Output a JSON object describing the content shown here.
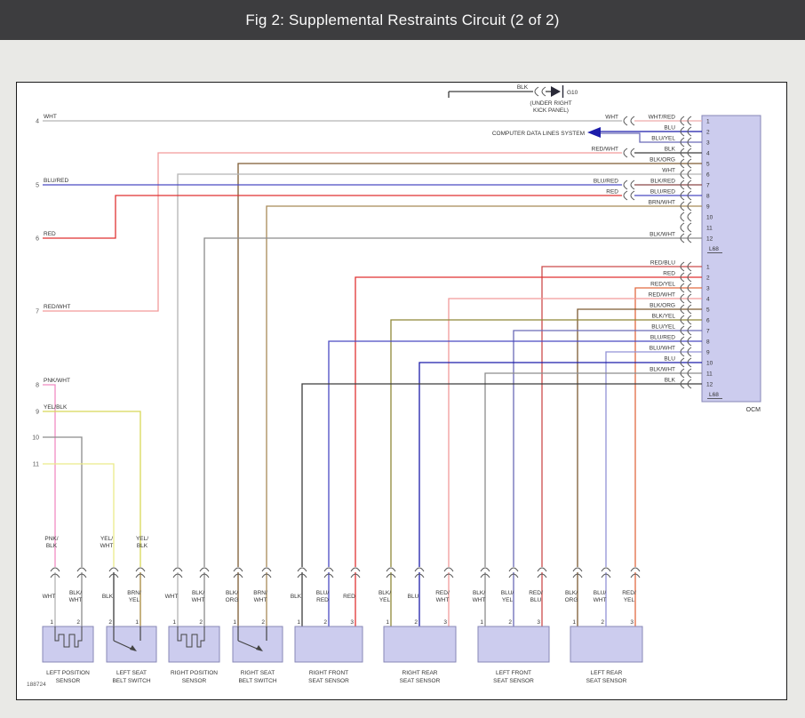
{
  "title": "Fig 2: Supplemental Restraints Circuit (2 of 2)",
  "figure_number": "188724",
  "ground": {
    "wire_label": "BLK",
    "name": "G10",
    "location_line1": "(UNDER RIGHT",
    "location_line2": "KICK PANEL)"
  },
  "data_lines": {
    "label": "COMPUTER DATA LINES SYSTEM"
  },
  "ocm": {
    "name": "OCM",
    "connectors": [
      {
        "label": "L68",
        "pins": [
          {
            "n": "1",
            "wire": "WHT/RED",
            "harness": "WHT"
          },
          {
            "n": "2",
            "wire": "BLU"
          },
          {
            "n": "3",
            "wire": "BLU/YEL"
          },
          {
            "n": "4",
            "wire": "BLK",
            "harness": "RED/WHT"
          },
          {
            "n": "5",
            "wire": "BLK/ORG"
          },
          {
            "n": "6",
            "wire": "WHT"
          },
          {
            "n": "7",
            "wire": "BLK/RED",
            "harness": "BLU/RED"
          },
          {
            "n": "8",
            "wire": "BLU/RED",
            "harness": "RED"
          },
          {
            "n": "9",
            "wire": "BRN/WHT"
          },
          {
            "n": "10",
            "wire": ""
          },
          {
            "n": "11",
            "wire": ""
          },
          {
            "n": "12",
            "wire": "BLK/WHT"
          }
        ]
      },
      {
        "label": "L68",
        "pins": [
          {
            "n": "1",
            "wire": "RED/BLU"
          },
          {
            "n": "2",
            "wire": "RED"
          },
          {
            "n": "3",
            "wire": "RED/YEL"
          },
          {
            "n": "4",
            "wire": "RED/WHT"
          },
          {
            "n": "5",
            "wire": "BLK/ORG"
          },
          {
            "n": "6",
            "wire": "BLK/YEL"
          },
          {
            "n": "7",
            "wire": "BLU/YEL"
          },
          {
            "n": "8",
            "wire": "BLU/RED"
          },
          {
            "n": "9",
            "wire": "BLU/WHT"
          },
          {
            "n": "10",
            "wire": "BLU"
          },
          {
            "n": "11",
            "wire": "BLK/WHT"
          },
          {
            "n": "12",
            "wire": "BLK"
          }
        ]
      }
    ]
  },
  "left_rows": [
    {
      "n": "4",
      "wire": "WHT"
    },
    {
      "n": "5",
      "wire": "BLU/RED"
    },
    {
      "n": "6",
      "wire": "RED"
    },
    {
      "n": "7",
      "wire": "RED/WHT"
    },
    {
      "n": "8",
      "wire": "PNK/WHT"
    },
    {
      "n": "9",
      "wire": "YEL/BLK"
    },
    {
      "n": "10",
      "wire": ""
    },
    {
      "n": "11",
      "wire": ""
    }
  ],
  "splices": [
    {
      "label": "PNK/BLK"
    },
    {
      "label": "YEL/WHT"
    },
    {
      "label": "YEL/BLK"
    }
  ],
  "sensors": [
    {
      "name": "LEFT POSITION SENSOR",
      "name_lines": [
        "LEFT POSITION",
        "SENSOR"
      ],
      "symbol": "position",
      "pins": [
        {
          "n": "1",
          "wire": "WHT"
        },
        {
          "n": "2",
          "wire": "BLK/WHT"
        }
      ]
    },
    {
      "name": "LEFT SEAT BELT SWITCH",
      "name_lines": [
        "LEFT SEAT",
        "BELT SWITCH"
      ],
      "symbol": "switch",
      "pins": [
        {
          "n": "2",
          "wire": "BLK"
        },
        {
          "n": "1",
          "wire": "BRN/YEL"
        }
      ]
    },
    {
      "name": "RIGHT POSITION SENSOR",
      "name_lines": [
        "RIGHT POSITION",
        "SENSOR"
      ],
      "symbol": "position",
      "pins": [
        {
          "n": "1",
          "wire": "WHT"
        },
        {
          "n": "2",
          "wire": "BLK/WHT"
        }
      ]
    },
    {
      "name": "RIGHT SEAT BELT SWITCH",
      "name_lines": [
        "RIGHT SEAT",
        "BELT SWITCH"
      ],
      "symbol": "switch",
      "pins": [
        {
          "n": "1",
          "wire": "BLK/ORG"
        },
        {
          "n": "2",
          "wire": "BRN/WHT"
        }
      ]
    },
    {
      "name": "RIGHT FRONT SEAT SENSOR",
      "name_lines": [
        "RIGHT FRONT",
        "SEAT SENSOR"
      ],
      "symbol": "none",
      "pins": [
        {
          "n": "1",
          "wire": "BLK"
        },
        {
          "n": "2",
          "wire": "BLU/RED"
        },
        {
          "n": "3",
          "wire": "RED"
        }
      ]
    },
    {
      "name": "RIGHT REAR SEAT SENSOR",
      "name_lines": [
        "RIGHT REAR",
        "SEAT SENSOR"
      ],
      "symbol": "none",
      "pins": [
        {
          "n": "1",
          "wire": "BLK/YEL"
        },
        {
          "n": "2",
          "wire": "BLU"
        },
        {
          "n": "3",
          "wire": "RED/WHT"
        }
      ]
    },
    {
      "name": "LEFT FRONT SEAT SENSOR",
      "name_lines": [
        "LEFT FRONT",
        "SEAT SENSOR"
      ],
      "symbol": "none",
      "pins": [
        {
          "n": "1",
          "wire": "BLK/WHT"
        },
        {
          "n": "2",
          "wire": "BLU/YEL"
        },
        {
          "n": "3",
          "wire": "RED/BLU"
        }
      ]
    },
    {
      "name": "LEFT REAR SEAT SENSOR",
      "name_lines": [
        "LEFT REAR",
        "SEAT SENSOR"
      ],
      "symbol": "none",
      "pins": [
        {
          "n": "1",
          "wire": "BLK/ORG"
        },
        {
          "n": "2",
          "wire": "BLU/WHT"
        },
        {
          "n": "3",
          "wire": "RED/YEL"
        }
      ]
    }
  ],
  "colors": {
    "WHT": "#b4b4b4",
    "BLK": "#3c3c3c",
    "BLK/WHT": "#8c8c8c",
    "BLK/RED": "#8a4646",
    "BLK/ORG": "#7d5a32",
    "BLK/YEL": "#8f8838",
    "BLU": "#1c1caa",
    "BLU/RED": "#4a4ac2",
    "BLU/YEL": "#6a6ab6",
    "BLU/WHT": "#9292d6",
    "RED": "#e03232",
    "RED/WHT": "#f29a9a",
    "RED/BLU": "#cc4a4a",
    "RED/YEL": "#e26a42",
    "WHT/RED": "#eeaaaa",
    "PNK/WHT": "#f08cc2",
    "PNK/BLK": "#f08cc2",
    "YEL/BLK": "#d8d858",
    "YEL/WHT": "#eaea8a",
    "BRN/WHT": "#a88a58",
    "BRN/YEL": "#a8883c",
    "box_fill": "#ccccee",
    "box_stroke": "#8787b7",
    "symbol": "#444444",
    "ground_symbol": "#2a2a38",
    "titlebar_bg": "#3d3d3f"
  }
}
